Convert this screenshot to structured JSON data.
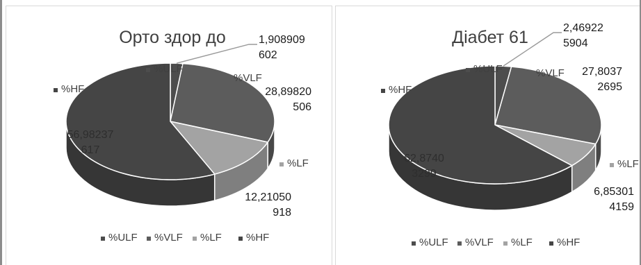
{
  "chart_data": [
    {
      "type": "pie",
      "title": "Орто здор до",
      "categories": [
        "%ULF",
        "%VLF",
        "%LF",
        "%HF"
      ],
      "slices": [
        {
          "label": "%ULF",
          "value": 1.908909602,
          "value_text": "1,908909\n602",
          "color": "#4d4d4d"
        },
        {
          "label": "%VLF",
          "value": 28.89820506,
          "value_text": "28,89820\n506",
          "color": "#5c5c5c"
        },
        {
          "label": "%LF",
          "value": 12.21050918,
          "value_text": "12,21050\n918",
          "color": "#a3a3a3"
        },
        {
          "label": "%HF",
          "value": 56.98237617,
          "value_text": "56,98237\n617",
          "color": "#454545"
        }
      ],
      "legend": [
        "%ULF",
        "%VLF",
        "%LF",
        "%HF"
      ],
      "legend_placement": "bottom",
      "grid": false
    },
    {
      "type": "pie",
      "title": "Діабет 61",
      "categories": [
        "%ULF",
        "%VLF",
        "%LF",
        "%HF"
      ],
      "slices": [
        {
          "label": "%ULF",
          "value": 2.469225904,
          "value_text": "2,46922\n5904",
          "color": "#4d4d4d"
        },
        {
          "label": "%VLF",
          "value": 27.80372695,
          "value_text": "27,8037\n2695",
          "color": "#5c5c5c"
        },
        {
          "label": "%LF",
          "value": 6.853014159,
          "value_text": "6,85301\n4159",
          "color": "#a3a3a3"
        },
        {
          "label": "%HF",
          "value": 62.87403299,
          "value_text": "62,8740\n3299",
          "color": "#454545"
        }
      ],
      "legend": [
        "%ULF",
        "%VLF",
        "%LF",
        "%HF"
      ],
      "legend_placement": "bottom",
      "grid": false
    }
  ]
}
